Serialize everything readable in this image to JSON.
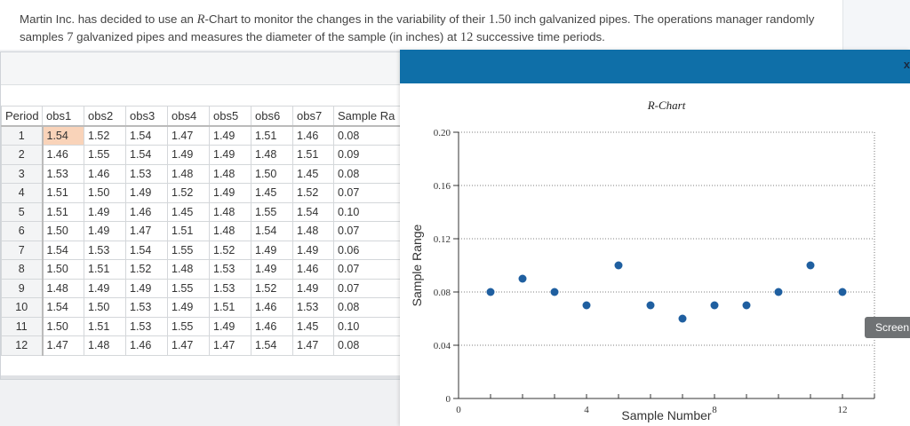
{
  "question": {
    "part1": "Martin Inc. has decided to use an ",
    "r_chart_term": "R",
    "part2": "-Chart to monitor the changes in the variability of their ",
    "pipe_size": "1.50",
    "part3": " inch galvanized pipes. The operations manager randomly samples ",
    "sample_count": "7",
    "part4": " galvanized pipes and measures the diameter of the sample (in inches) at ",
    "periods": "12",
    "part5": " successive time periods."
  },
  "table": {
    "headers": [
      "Period",
      "obs1",
      "obs2",
      "obs3",
      "obs4",
      "obs5",
      "obs6",
      "obs7",
      "Sample Ra"
    ],
    "rows": [
      [
        "1",
        "1.54",
        "1.52",
        "1.54",
        "1.47",
        "1.49",
        "1.51",
        "1.46",
        "0.08"
      ],
      [
        "2",
        "1.46",
        "1.55",
        "1.54",
        "1.49",
        "1.49",
        "1.48",
        "1.51",
        "0.09"
      ],
      [
        "3",
        "1.53",
        "1.46",
        "1.53",
        "1.48",
        "1.48",
        "1.50",
        "1.45",
        "0.08"
      ],
      [
        "4",
        "1.51",
        "1.50",
        "1.49",
        "1.52",
        "1.49",
        "1.45",
        "1.52",
        "0.07"
      ],
      [
        "5",
        "1.51",
        "1.49",
        "1.46",
        "1.45",
        "1.48",
        "1.55",
        "1.54",
        "0.10"
      ],
      [
        "6",
        "1.50",
        "1.49",
        "1.47",
        "1.51",
        "1.48",
        "1.54",
        "1.48",
        "0.07"
      ],
      [
        "7",
        "1.54",
        "1.53",
        "1.54",
        "1.55",
        "1.52",
        "1.49",
        "1.49",
        "0.06"
      ],
      [
        "8",
        "1.50",
        "1.51",
        "1.52",
        "1.48",
        "1.53",
        "1.49",
        "1.46",
        "0.07"
      ],
      [
        "9",
        "1.48",
        "1.49",
        "1.49",
        "1.55",
        "1.53",
        "1.52",
        "1.49",
        "0.07"
      ],
      [
        "10",
        "1.54",
        "1.50",
        "1.53",
        "1.49",
        "1.51",
        "1.46",
        "1.53",
        "0.08"
      ],
      [
        "11",
        "1.50",
        "1.51",
        "1.53",
        "1.55",
        "1.49",
        "1.46",
        "1.45",
        "0.10"
      ],
      [
        "12",
        "1.47",
        "1.48",
        "1.46",
        "1.47",
        "1.47",
        "1.54",
        "1.47",
        "0.08"
      ]
    ]
  },
  "modal": {
    "close_label": "x",
    "screen_button": "Screen"
  },
  "chart_data": {
    "type": "scatter",
    "title": "R-Chart",
    "xlabel": "Sample Number",
    "ylabel": "Sample Range",
    "x": [
      1,
      2,
      3,
      4,
      5,
      6,
      7,
      8,
      9,
      10,
      11,
      12
    ],
    "y": [
      0.08,
      0.09,
      0.08,
      0.07,
      0.1,
      0.07,
      0.06,
      0.07,
      0.07,
      0.08,
      0.1,
      0.08
    ],
    "xlim": [
      0,
      13
    ],
    "ylim": [
      0,
      0.2
    ],
    "xticks": [
      0,
      4,
      8,
      12
    ],
    "yticks": [
      "0",
      "0.04",
      "0.08",
      "0.12",
      "0.16",
      "0.20"
    ],
    "grid": "horizontal dotted",
    "marker_color": "#1f5fa0"
  }
}
